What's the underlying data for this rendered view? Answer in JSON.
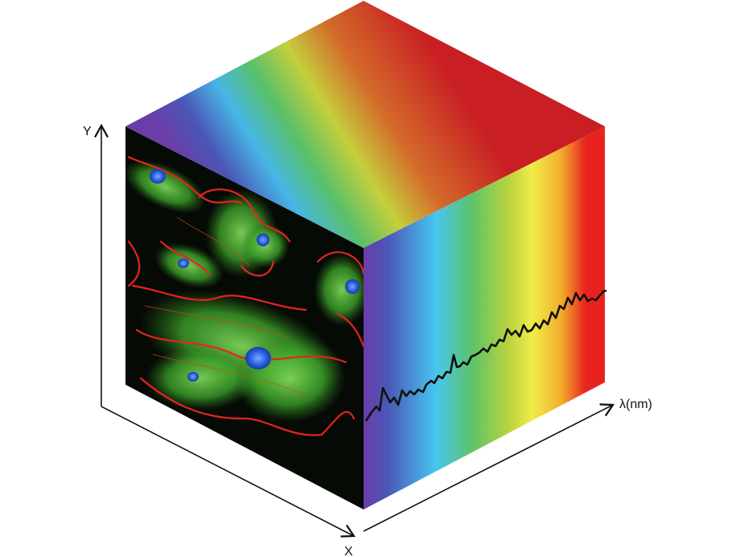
{
  "axes": {
    "y_label": "Y",
    "x_label": "X",
    "lambda_label": "λ(nm)"
  },
  "colors": {
    "axis": "#111111",
    "spectrum_curve": "#111111",
    "cell_background": "#050a05",
    "actin": "#e8231f",
    "tubulin": "#3fbf2a",
    "nucleus": "#2a63e6",
    "spectrum": [
      "#6a3ea8",
      "#4a57b6",
      "#47b6e6",
      "#58c06a",
      "#b9d23f",
      "#f1ec4a",
      "#f2ad2c",
      "#e8231f"
    ]
  }
}
